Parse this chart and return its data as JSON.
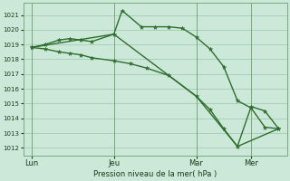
{
  "background_color": "#cce8d8",
  "grid_color": "#aacfb8",
  "line_color": "#2d6e2d",
  "ylabel": "Pression niveau de la mer( hPa )",
  "ylim": [
    1011.5,
    1021.8
  ],
  "yticks": [
    1012,
    1013,
    1014,
    1015,
    1016,
    1017,
    1018,
    1019,
    1020,
    1021
  ],
  "xtick_labels": [
    "Lun",
    "Jeu",
    "Mar",
    "Mer"
  ],
  "xtick_positions": [
    0,
    30,
    60,
    80
  ],
  "xlim": [
    -3,
    93
  ],
  "series1": {
    "x": [
      0,
      5,
      10,
      14,
      18,
      22,
      30,
      33,
      40,
      45,
      50,
      55,
      60,
      65,
      70,
      75,
      80,
      85,
      90
    ],
    "y": [
      1018.8,
      1019.0,
      1019.3,
      1019.4,
      1019.3,
      1019.2,
      1019.7,
      1021.3,
      1020.2,
      1020.2,
      1020.2,
      1020.1,
      1019.5,
      1018.7,
      1017.5,
      1015.2,
      1014.7,
      1013.4,
      1013.3
    ]
  },
  "series2": {
    "x": [
      0,
      5,
      10,
      14,
      18,
      22,
      30,
      36,
      42,
      50,
      60,
      65,
      70,
      75,
      80,
      85,
      90
    ],
    "y": [
      1018.8,
      1018.7,
      1018.5,
      1018.4,
      1018.3,
      1018.1,
      1017.9,
      1017.7,
      1017.4,
      1016.9,
      1015.5,
      1014.6,
      1013.3,
      1012.1,
      1014.8,
      1014.5,
      1013.3
    ]
  },
  "series3": {
    "x": [
      0,
      30,
      60,
      75,
      90
    ],
    "y": [
      1018.8,
      1019.7,
      1015.5,
      1012.1,
      1013.3
    ]
  }
}
